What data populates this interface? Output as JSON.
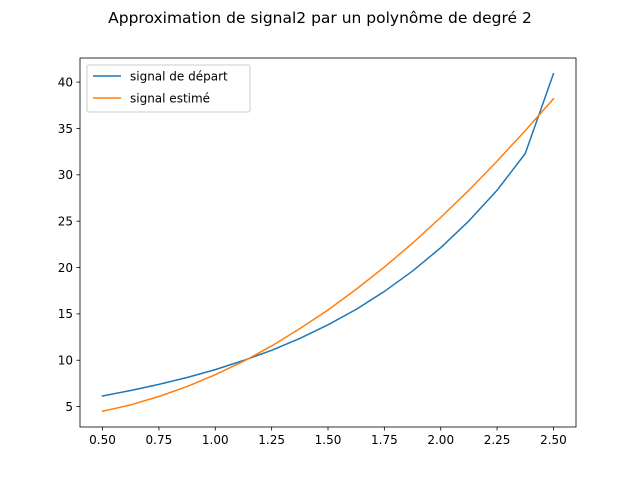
{
  "chart_data": {
    "type": "line",
    "title": "Approximation de signal2 par un polynôme de degré 2",
    "xlabel": "",
    "ylabel": "",
    "xlim": [
      0.4,
      2.6
    ],
    "ylim": [
      2.8,
      42.6
    ],
    "grid": false,
    "legend_position": "top-left",
    "xticks": [
      0.5,
      0.75,
      1.0,
      1.25,
      1.5,
      1.75,
      2.0,
      2.25,
      2.5
    ],
    "xtick_labels": [
      "0.50",
      "0.75",
      "1.00",
      "1.25",
      "1.50",
      "1.75",
      "2.00",
      "2.25",
      "2.50"
    ],
    "yticks": [
      5,
      10,
      15,
      20,
      25,
      30,
      35,
      40
    ],
    "ytick_labels": [
      "5",
      "10",
      "15",
      "20",
      "25",
      "30",
      "35",
      "40"
    ],
    "x": [
      0.5,
      0.625,
      0.75,
      0.875,
      1.0,
      1.125,
      1.25,
      1.375,
      1.5,
      1.625,
      1.75,
      1.875,
      2.0,
      2.125,
      2.25,
      2.375,
      2.5
    ],
    "series": [
      {
        "name": "signal de départ",
        "color": "#1f77b4",
        "values": [
          6.15,
          6.74,
          7.4,
          8.14,
          8.99,
          9.97,
          11.07,
          12.35,
          13.82,
          15.49,
          17.42,
          19.62,
          22.14,
          25.03,
          28.33,
          32.3,
          40.9
        ]
      },
      {
        "name": "signal estimé",
        "color": "#ff7f0e",
        "values": [
          4.5,
          5.19,
          6.09,
          7.16,
          8.44,
          9.88,
          11.54,
          13.41,
          15.42,
          17.66,
          20.05,
          22.63,
          25.41,
          28.34,
          31.48,
          34.77,
          38.2
        ]
      }
    ]
  }
}
